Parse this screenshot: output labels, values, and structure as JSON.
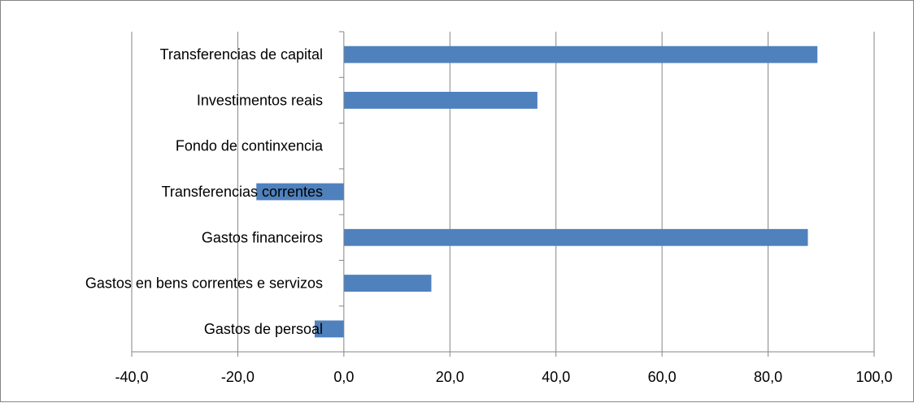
{
  "chart_data": {
    "type": "bar",
    "orientation": "horizontal",
    "categories": [
      "Gastos de persoal",
      "Gastos en bens correntes e servizos",
      "Gastos financeiros",
      "Transferencias correntes",
      "Fondo de continxencia",
      "Investimentos reais",
      "Transferencias de capital"
    ],
    "values": [
      -5.5,
      16.5,
      87.5,
      -16.5,
      0,
      36.5,
      89.3
    ],
    "xlim": [
      -40,
      100
    ],
    "xticks": [
      -40,
      -20,
      0,
      20,
      40,
      60,
      80,
      100
    ],
    "xtick_labels": [
      "-40,0",
      "-20,0",
      "0,0",
      "20,0",
      "40,0",
      "60,0",
      "80,0",
      "100,0"
    ],
    "grid": "vertical",
    "legend": "none",
    "bar_color": "#4f81bd",
    "grid_color": "#868686"
  }
}
